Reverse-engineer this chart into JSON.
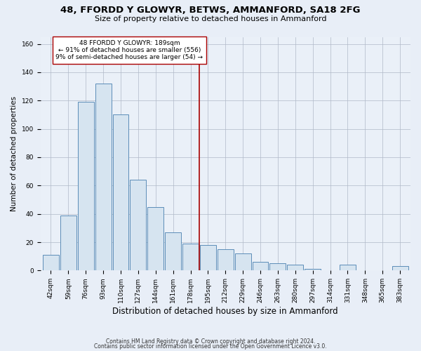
{
  "title": "48, FFORDD Y GLOWYR, BETWS, AMMANFORD, SA18 2FG",
  "subtitle": "Size of property relative to detached houses in Ammanford",
  "xlabel": "Distribution of detached houses by size in Ammanford",
  "ylabel": "Number of detached properties",
  "footer_lines": [
    "Contains HM Land Registry data © Crown copyright and database right 2024.",
    "Contains public sector information licensed under the Open Government Licence v3.0."
  ],
  "categories": [
    "42sqm",
    "59sqm",
    "76sqm",
    "93sqm",
    "110sqm",
    "127sqm",
    "144sqm",
    "161sqm",
    "178sqm",
    "195sqm",
    "212sqm",
    "229sqm",
    "246sqm",
    "263sqm",
    "280sqm",
    "297sqm",
    "314sqm",
    "331sqm",
    "348sqm",
    "365sqm",
    "383sqm"
  ],
  "values": [
    11,
    39,
    119,
    132,
    110,
    64,
    45,
    27,
    19,
    18,
    15,
    12,
    6,
    5,
    4,
    1,
    0,
    4,
    0,
    0,
    3
  ],
  "bar_color": "#d6e4f0",
  "bar_edge_color": "#5b8db8",
  "vline_x_index": 8.5,
  "vline_color": "#aa0000",
  "annotation_text": "48 FFORDD Y GLOWYR: 189sqm\n← 91% of detached houses are smaller (556)\n9% of semi-detached houses are larger (54) →",
  "annotation_box_edge": "#aa0000",
  "annotation_box_face": "#ffffff",
  "ylim": [
    0,
    165
  ],
  "yticks": [
    0,
    20,
    40,
    60,
    80,
    100,
    120,
    140,
    160
  ],
  "title_fontsize": 9.5,
  "subtitle_fontsize": 8,
  "xlabel_fontsize": 8.5,
  "ylabel_fontsize": 7.5,
  "tick_fontsize": 6.5,
  "annotation_fontsize": 6.5,
  "footer_fontsize": 5.5,
  "background_color": "#e8eef7",
  "plot_bg_color": "#eaf0f8"
}
